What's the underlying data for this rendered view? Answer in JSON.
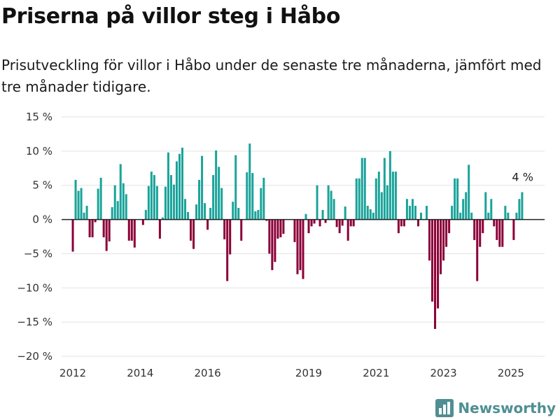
{
  "header": {
    "title": "Priserna på villor steg i Håbo",
    "subtitle": "Prisutveckling för villor i Håbo under de senaste tre månaderna, jämfört med tre månader tidigare."
  },
  "brand": {
    "name": "Newsworthy",
    "icon": "chart-logo-icon",
    "color": "#4f8f93"
  },
  "colors": {
    "positive": "#1aa39a",
    "negative": "#8b0038",
    "grid": "#e2e2e2",
    "zero_line": "#222222"
  },
  "chart_data": {
    "type": "bar",
    "title": "",
    "xlabel": "",
    "ylabel": "",
    "x_unit": "month",
    "y_unit": "%",
    "ylim": [
      -20,
      15
    ],
    "xlim": [
      "2011-09",
      "2026-01"
    ],
    "yticks": [
      15,
      10,
      5,
      0,
      -5,
      -10,
      -15,
      -20
    ],
    "ytick_labels": [
      "15 %",
      "10 %",
      "5 %",
      "0 %",
      "−5 %",
      "−10 %",
      "−15 %",
      "−20 %"
    ],
    "xtick_labels": [
      "2012",
      "2014",
      "2016",
      "2019",
      "2021",
      "2023",
      "2025"
    ],
    "grid": true,
    "last_value_label": "4 %",
    "start": "2012-01",
    "values": [
      -4.7,
      5.8,
      4.2,
      4.6,
      1.0,
      2.0,
      -2.6,
      -2.6,
      -0.4,
      4.5,
      6.1,
      -2.6,
      -4.6,
      -3.2,
      1.8,
      5.0,
      2.7,
      8.1,
      5.3,
      3.7,
      -3.1,
      -3.1,
      -4.1,
      null,
      null,
      -0.8,
      1.4,
      4.9,
      7.0,
      6.5,
      4.9,
      -2.8,
      0.3,
      4.8,
      9.8,
      6.5,
      5.1,
      8.5,
      9.6,
      10.5,
      3.0,
      1.1,
      -3.1,
      -4.3,
      2.2,
      5.8,
      9.3,
      2.4,
      -1.5,
      1.7,
      6.5,
      10.1,
      7.7,
      4.6,
      -2.9,
      -9.0,
      -5.1,
      2.6,
      9.4,
      1.7,
      -3.1,
      null,
      6.9,
      11.1,
      6.8,
      1.2,
      1.4,
      4.6,
      6.1,
      -0.2,
      -5.0,
      -7.4,
      -6.2,
      -2.8,
      -2.6,
      -2.1,
      0.0,
      null,
      null,
      -3.3,
      -8.0,
      -7.4,
      -8.7,
      0.8,
      -2.0,
      -1.0,
      -0.6,
      5.0,
      -1.0,
      1.4,
      -0.5,
      5.0,
      4.2,
      3.0,
      -1.1,
      -2.0,
      -0.9,
      1.9,
      -3.1,
      -1.0,
      -1.0,
      6.0,
      6.0,
      9.0,
      9.0,
      2.0,
      1.5,
      1.0,
      6.0,
      7.0,
      4.0,
      9.0,
      5.0,
      10.0,
      7.0,
      7.0,
      -2.0,
      -1.0,
      -1.0,
      3.0,
      2.0,
      3.0,
      2.0,
      -1.0,
      1.0,
      null,
      2.0,
      -6.0,
      -12.0,
      -16.0,
      -13.0,
      -8.0,
      -6.0,
      -4.0,
      -2.0,
      2.0,
      6.0,
      6.0,
      1.0,
      3.0,
      4.0,
      8.0,
      1.0,
      -3.0,
      -9.0,
      -4.0,
      -2.0,
      4.0,
      1.0,
      3.0,
      -1.0,
      -3.0,
      -4.0,
      -4.0,
      2.0,
      1.0,
      null,
      -3.0,
      1.0,
      3.0,
      4.0
    ]
  }
}
